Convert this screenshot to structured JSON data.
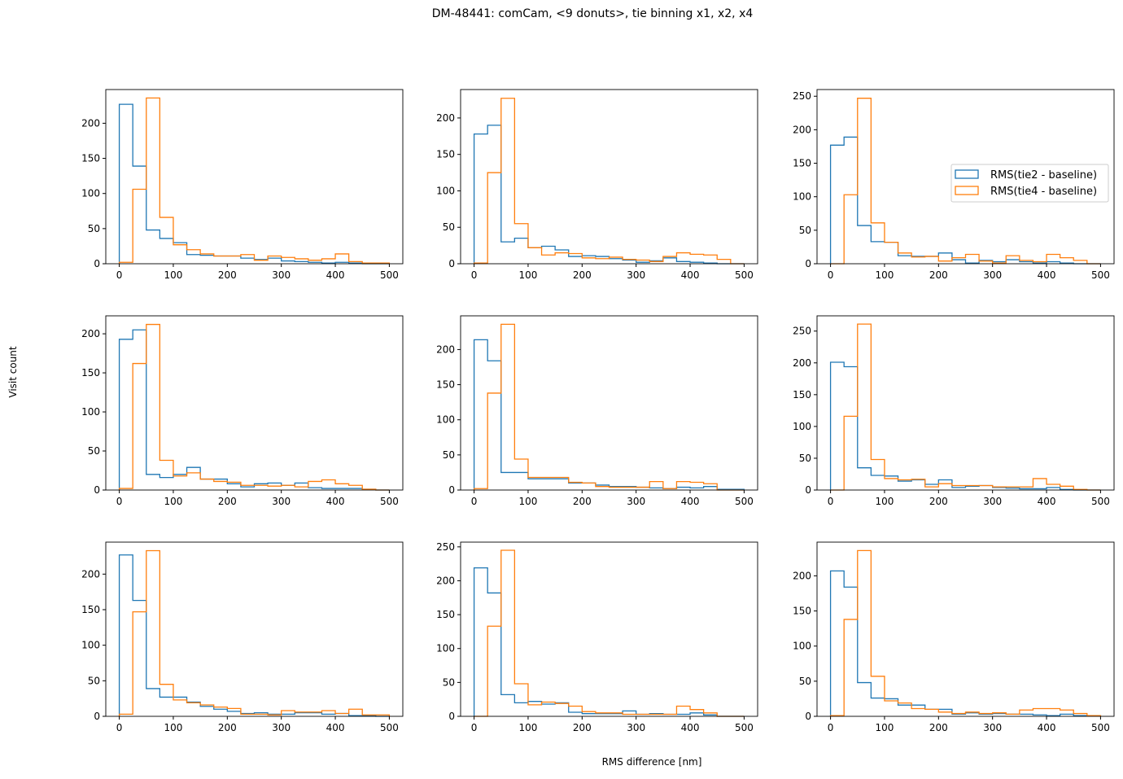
{
  "title": "DM-48441:  comCam, <9 donuts>, tie binning x1, x2, x4",
  "ylabel": "Visit count",
  "xlabel": "RMS difference [nm]",
  "colors": {
    "tie2": "#1f77b4",
    "tie4": "#ff7f0e"
  },
  "chart_data": {
    "type": "histogram-step",
    "grid": false,
    "layout": "3x3",
    "legend": {
      "panel": 3,
      "placement": "center-right",
      "entries": [
        "RMS(tie2 - baseline)",
        "RMS(tie4 - baseline)"
      ]
    },
    "bin_edges_start": 0,
    "bin_width": 25,
    "bin_count": 20,
    "xlim": [
      -25,
      525
    ],
    "xticks": [
      0,
      100,
      200,
      300,
      400,
      500
    ],
    "panels": [
      {
        "ylim": [
          0,
          248
        ],
        "yticks": [
          0,
          50,
          100,
          150,
          200
        ],
        "tie2": [
          227,
          139,
          48,
          36,
          30,
          13,
          12,
          11,
          11,
          8,
          6,
          8,
          4,
          3,
          2,
          1,
          2,
          1,
          0,
          0
        ],
        "tie4": [
          2,
          106,
          236,
          66,
          27,
          20,
          14,
          11,
          11,
          13,
          5,
          11,
          9,
          7,
          5,
          7,
          14,
          3,
          1,
          1
        ]
      },
      {
        "ylim": [
          0,
          239
        ],
        "yticks": [
          0,
          50,
          100,
          150,
          200
        ],
        "tie2": [
          178,
          190,
          30,
          35,
          22,
          24,
          19,
          10,
          11,
          10,
          7,
          5,
          2,
          4,
          8,
          3,
          2,
          1,
          0,
          0
        ],
        "tie4": [
          1,
          125,
          227,
          55,
          22,
          12,
          15,
          14,
          8,
          7,
          9,
          6,
          5,
          3,
          10,
          15,
          13,
          12,
          6,
          0
        ]
      },
      {
        "ylim": [
          0,
          260
        ],
        "yticks": [
          0,
          50,
          100,
          150,
          200,
          250
        ],
        "tie2": [
          177,
          189,
          57,
          33,
          32,
          12,
          11,
          11,
          16,
          6,
          1,
          5,
          3,
          6,
          3,
          1,
          3,
          1,
          0,
          0
        ],
        "tie4": [
          0,
          103,
          247,
          61,
          32,
          16,
          10,
          11,
          4,
          9,
          14,
          4,
          1,
          12,
          5,
          3,
          14,
          9,
          5,
          0
        ]
      },
      {
        "ylim": [
          0,
          223
        ],
        "yticks": [
          0,
          50,
          100,
          150,
          200
        ],
        "tie2": [
          193,
          205,
          20,
          16,
          20,
          29,
          14,
          14,
          8,
          4,
          8,
          9,
          6,
          9,
          3,
          2,
          2,
          2,
          1,
          0
        ],
        "tie4": [
          2,
          162,
          212,
          38,
          18,
          22,
          14,
          11,
          10,
          6,
          6,
          5,
          6,
          4,
          11,
          13,
          8,
          6,
          1,
          0
        ]
      },
      {
        "ylim": [
          0,
          248
        ],
        "yticks": [
          0,
          50,
          100,
          150,
          200
        ],
        "tie2": [
          214,
          184,
          25,
          25,
          16,
          16,
          16,
          10,
          10,
          7,
          5,
          5,
          4,
          3,
          2,
          4,
          3,
          5,
          1,
          1
        ],
        "tie4": [
          2,
          138,
          236,
          44,
          18,
          18,
          18,
          11,
          10,
          5,
          4,
          4,
          4,
          12,
          2,
          12,
          11,
          9,
          0,
          0
        ]
      },
      {
        "ylim": [
          0,
          274
        ],
        "yticks": [
          0,
          50,
          100,
          150,
          200,
          250
        ],
        "tie2": [
          201,
          194,
          35,
          23,
          22,
          14,
          16,
          9,
          16,
          4,
          6,
          7,
          4,
          3,
          2,
          2,
          4,
          1,
          0,
          0
        ],
        "tie4": [
          0,
          116,
          261,
          48,
          18,
          16,
          17,
          5,
          10,
          7,
          7,
          7,
          5,
          5,
          5,
          18,
          9,
          6,
          1,
          0
        ]
      },
      {
        "ylim": [
          0,
          245
        ],
        "yticks": [
          0,
          50,
          100,
          150,
          200
        ],
        "tie2": [
          227,
          163,
          39,
          27,
          27,
          20,
          14,
          10,
          7,
          4,
          5,
          3,
          3,
          5,
          5,
          3,
          4,
          1,
          1,
          0
        ],
        "tie4": [
          3,
          147,
          233,
          45,
          23,
          19,
          16,
          13,
          11,
          3,
          3,
          2,
          8,
          6,
          6,
          8,
          4,
          10,
          2,
          2
        ]
      },
      {
        "ylim": [
          0,
          257
        ],
        "yticks": [
          0,
          50,
          100,
          150,
          200,
          250
        ],
        "tie2": [
          219,
          182,
          32,
          20,
          22,
          18,
          20,
          6,
          4,
          4,
          4,
          8,
          3,
          4,
          3,
          3,
          5,
          2,
          0,
          0
        ],
        "tie4": [
          0,
          133,
          245,
          48,
          17,
          21,
          19,
          15,
          7,
          5,
          5,
          3,
          3,
          3,
          3,
          15,
          10,
          5,
          0,
          0
        ]
      },
      {
        "ylim": [
          0,
          248
        ],
        "yticks": [
          0,
          50,
          100,
          150,
          200
        ],
        "tie2": [
          207,
          184,
          48,
          26,
          25,
          16,
          16,
          10,
          10,
          3,
          5,
          3,
          4,
          3,
          3,
          2,
          1,
          3,
          1,
          1
        ],
        "tie4": [
          1,
          138,
          236,
          57,
          22,
          19,
          11,
          10,
          6,
          4,
          6,
          4,
          5,
          3,
          9,
          11,
          11,
          9,
          4,
          1
        ]
      }
    ]
  }
}
